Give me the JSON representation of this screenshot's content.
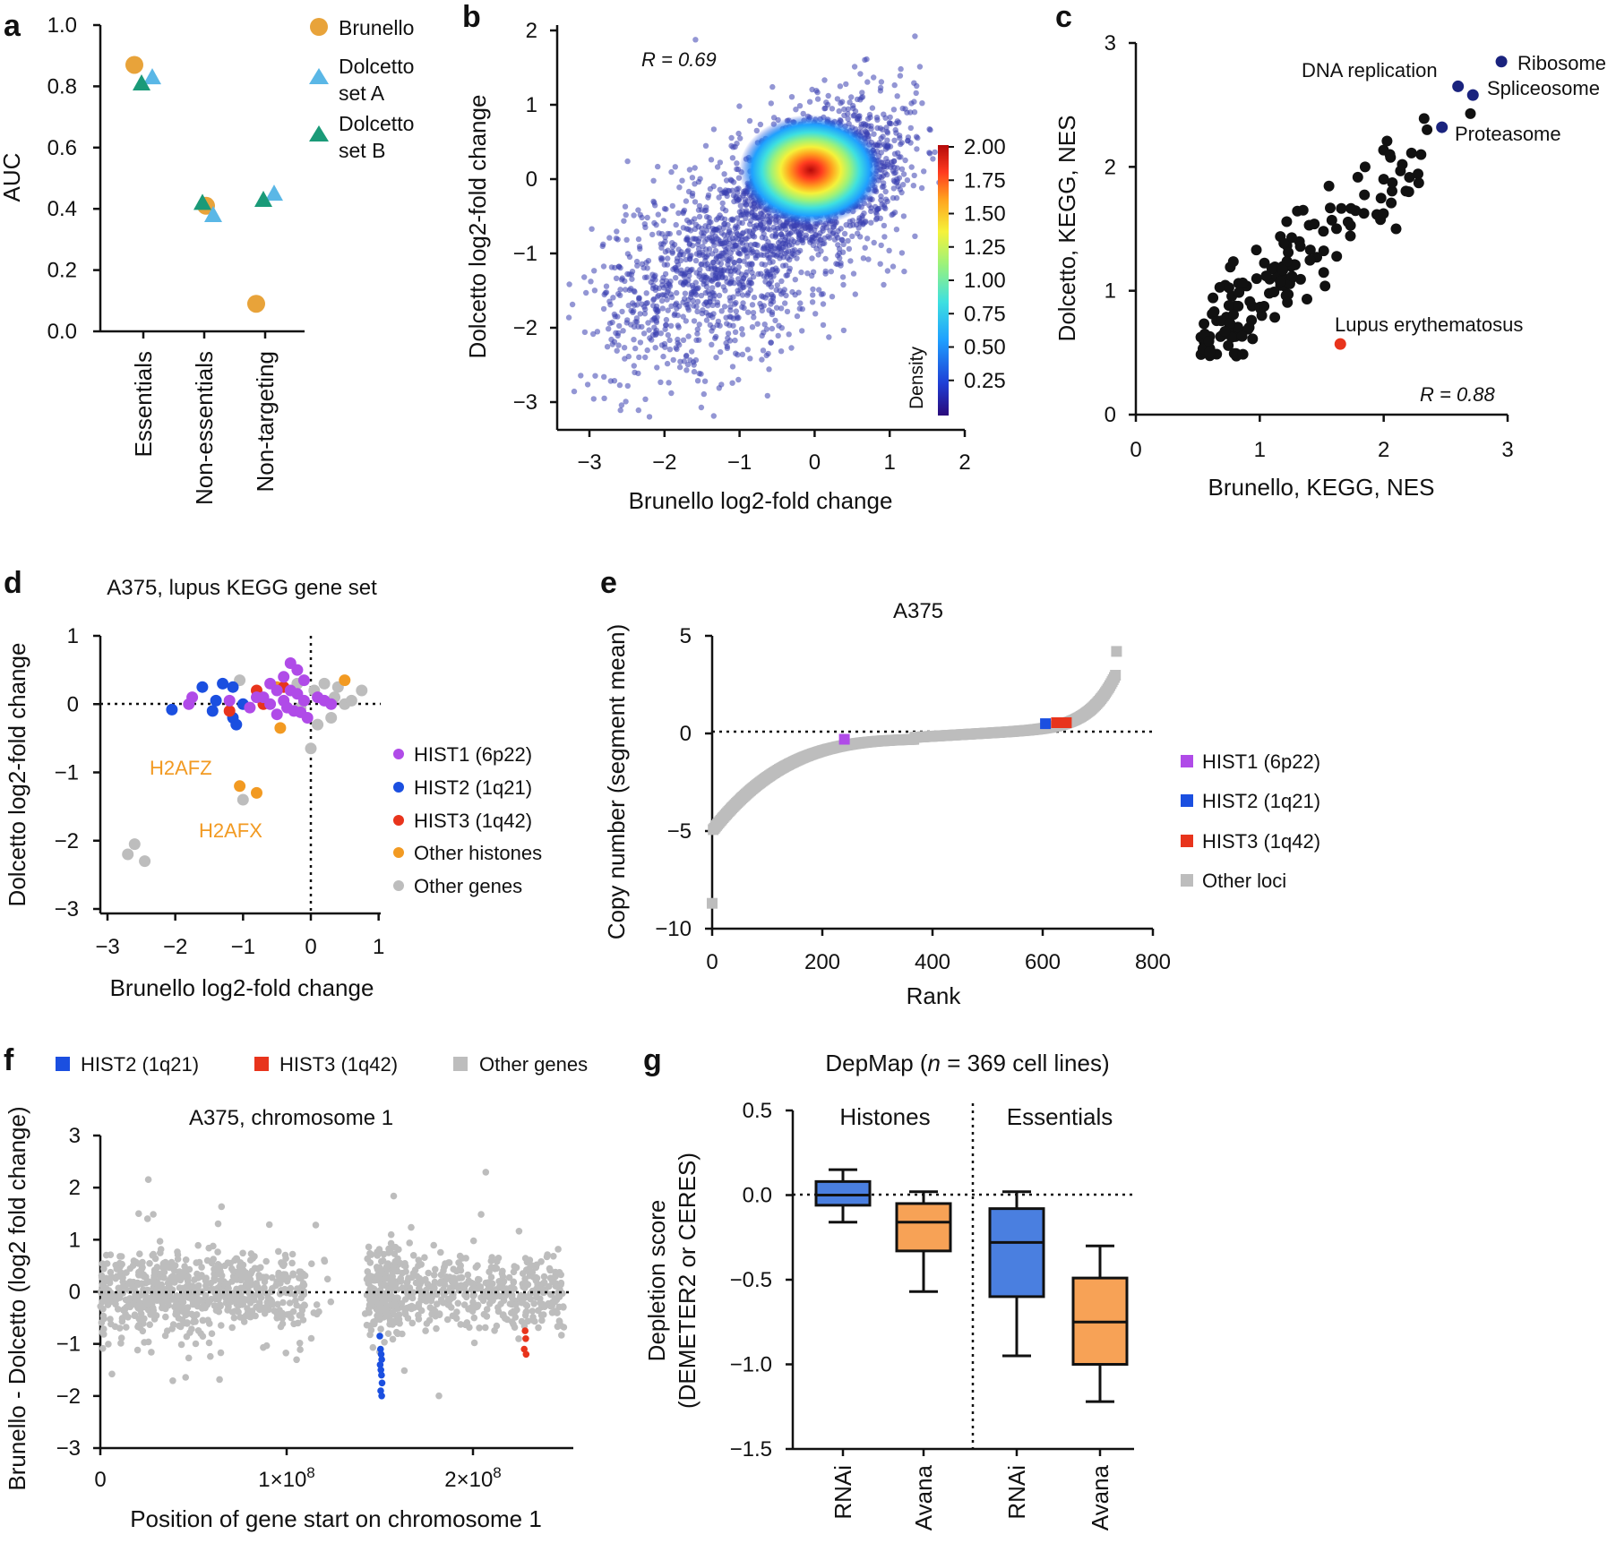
{
  "chart_data": [
    {
      "panel": "a",
      "type": "scatter",
      "ylabel": "AUC",
      "ylim": [
        0,
        1.0
      ],
      "y_ticks": [
        "0.0",
        "0.2",
        "0.4",
        "0.6",
        "0.8",
        "1.0"
      ],
      "categories": [
        "Essentials",
        "Non-essentials",
        "Non-targeting"
      ],
      "legend": [
        "Brunello",
        "Dolcetto set A",
        "Dolcetto set B"
      ],
      "series": [
        {
          "name": "Brunello",
          "color": "#e8a33a",
          "marker": "circle",
          "values": [
            0.87,
            0.41,
            0.09
          ]
        },
        {
          "name": "Dolcetto set A",
          "color": "#5ab7e6",
          "marker": "triangle",
          "values": [
            0.83,
            0.38,
            0.45
          ]
        },
        {
          "name": "Dolcetto set B",
          "color": "#1a9a78",
          "marker": "triangle",
          "values": [
            0.81,
            0.42,
            0.43
          ]
        }
      ]
    },
    {
      "panel": "b",
      "type": "scatter",
      "xlabel": "Brunello log2-fold change",
      "ylabel": "Dolcetto log2-fold change",
      "xlim": [
        -3.4,
        2
      ],
      "ylim": [
        -3.3,
        2.1
      ],
      "x_ticks": [
        "−3",
        "−2",
        "−1",
        "0",
        "1",
        "2"
      ],
      "y_ticks": [
        "−3",
        "−2",
        "−1",
        "0",
        "1",
        "2"
      ],
      "annotation": "R = 0.69",
      "colorbar": {
        "label": "Density",
        "ticks": [
          "0.25",
          "0.50",
          "0.75",
          "1.00",
          "1.25",
          "1.50",
          "1.75",
          "2.00"
        ]
      },
      "density_peak": {
        "x": 0.1,
        "y": 0.1
      }
    },
    {
      "panel": "c",
      "type": "scatter",
      "xlabel": "Brunello, KEGG, NES",
      "ylabel": "Dolcetto, KEGG, NES",
      "xlim": [
        0,
        3
      ],
      "ylim": [
        0,
        3
      ],
      "x_ticks": [
        "0",
        "1",
        "2",
        "3"
      ],
      "y_ticks": [
        "0",
        "1",
        "2",
        "3"
      ],
      "annotation": "R = 0.88",
      "highlighted": [
        {
          "label": "Ribosome",
          "x": 2.95,
          "y": 2.85,
          "color": "#1a237e"
        },
        {
          "label": "DNA replication",
          "x": 2.6,
          "y": 2.65,
          "color": "#1a237e"
        },
        {
          "label": "Spliceosome",
          "x": 2.72,
          "y": 2.58,
          "color": "#1a237e"
        },
        {
          "label": "Proteasome",
          "x": 2.47,
          "y": 2.32,
          "color": "#1a237e"
        },
        {
          "label": "Lupus erythematosus",
          "x": 1.65,
          "y": 0.57,
          "color": "#e8341c"
        }
      ]
    },
    {
      "panel": "d",
      "type": "scatter",
      "title": "A375, lupus KEGG gene set",
      "xlabel": "Brunello log2-fold change",
      "ylabel": "Dolcetto log2-fold change",
      "xlim": [
        -3.1,
        1
      ],
      "ylim": [
        -3.1,
        1
      ],
      "x_ticks": [
        "−3",
        "−2",
        "−1",
        "0",
        "1"
      ],
      "y_ticks": [
        "−3",
        "−2",
        "−1",
        "0",
        "1"
      ],
      "annotations": [
        "H2AFZ",
        "H2AFX"
      ],
      "legend": [
        "HIST1 (6p22)",
        "HIST2 (1q21)",
        "HIST3 (1q42)",
        "Other histones",
        "Other genes"
      ],
      "colors": [
        "#b04be8",
        "#1b4fe0",
        "#e8341c",
        "#f29a22",
        "#bdbdbd"
      ],
      "points": {
        "hist1": [
          [
            -0.3,
            0.6
          ],
          [
            -0.2,
            0.5
          ],
          [
            -0.4,
            0.4
          ],
          [
            -0.1,
            0.35
          ],
          [
            -0.6,
            0.3
          ],
          [
            -0.5,
            0.2
          ],
          [
            -0.3,
            0.2
          ],
          [
            -0.2,
            0.15
          ],
          [
            -0.8,
            0.1
          ],
          [
            -0.7,
            0.1
          ],
          [
            -0.4,
            0.05
          ],
          [
            -0.1,
            0.05
          ],
          [
            0.1,
            0.1
          ],
          [
            -0.6,
            0.0
          ],
          [
            -0.35,
            -0.05
          ],
          [
            -0.25,
            -0.1
          ],
          [
            -0.15,
            -0.12
          ],
          [
            -0.9,
            -0.05
          ],
          [
            -1.2,
            0.05
          ],
          [
            -0.5,
            -0.15
          ],
          [
            -0.05,
            -0.2
          ],
          [
            0.2,
            0.05
          ],
          [
            0.3,
            0.0
          ],
          [
            -1.75,
            0.1
          ],
          [
            -1.8,
            0.0
          ]
        ],
        "hist2": [
          [
            -1.6,
            0.25
          ],
          [
            -1.3,
            0.3
          ],
          [
            -1.15,
            0.25
          ],
          [
            -1.4,
            0.05
          ],
          [
            -1.0,
            0.0
          ],
          [
            -2.05,
            -0.08
          ],
          [
            -1.45,
            -0.1
          ],
          [
            -1.15,
            -0.2
          ],
          [
            -1.1,
            -0.3
          ]
        ],
        "hist3": [
          [
            -0.8,
            0.2
          ],
          [
            -0.7,
            0.0
          ],
          [
            -1.2,
            -0.1
          ],
          [
            -0.4,
            0.25
          ]
        ],
        "other_histones": [
          [
            -1.05,
            -1.2
          ],
          [
            -0.8,
            -1.3
          ],
          [
            -0.45,
            -0.35
          ],
          [
            -0.5,
            0.25
          ],
          [
            0.5,
            0.35
          ]
        ],
        "other_genes": [
          [
            -1.0,
            -1.4
          ],
          [
            -2.7,
            -2.2
          ],
          [
            -2.45,
            -2.3
          ],
          [
            -2.6,
            -2.05
          ],
          [
            0.0,
            -0.65
          ],
          [
            0.2,
            0.3
          ],
          [
            0.4,
            0.25
          ],
          [
            0.75,
            0.2
          ],
          [
            0.1,
            -0.3
          ],
          [
            0.3,
            -0.2
          ],
          [
            -0.2,
            0.3
          ],
          [
            0.5,
            0.0
          ],
          [
            -0.15,
            -0.05
          ],
          [
            0.05,
            0.2
          ],
          [
            0.35,
            0.1
          ],
          [
            -1.05,
            0.35
          ],
          [
            0.6,
            0.05
          ]
        ]
      }
    },
    {
      "panel": "e",
      "type": "scatter",
      "title": "A375",
      "xlabel": "Rank",
      "ylabel": "Copy number (segment mean)",
      "xlim": [
        0,
        800
      ],
      "ylim": [
        -10,
        5
      ],
      "x_ticks": [
        "0",
        "200",
        "400",
        "600",
        "800"
      ],
      "y_ticks": [
        "−10",
        "−5",
        "0",
        "5"
      ],
      "legend": [
        "HIST1 (6p22)",
        "HIST2 (1q21)",
        "HIST3 (1q42)",
        "Other loci"
      ],
      "colors": [
        "#b04be8",
        "#1b4fe0",
        "#e8341c",
        "#bdbdbd"
      ],
      "highlighted": [
        {
          "name": "HIST1 (6p22)",
          "x": 240,
          "y": -0.3
        },
        {
          "name": "HIST2 (1q21)",
          "x": 605,
          "y": 0.5
        },
        {
          "name": "HIST3 (1q42)",
          "x": 625,
          "y": 0.55
        }
      ]
    },
    {
      "panel": "f",
      "type": "scatter",
      "title": "A375, chromosome 1",
      "xlabel": "Position of gene start on chromosome 1",
      "ylabel": "Brunello - Dolcetto (log2 fold change)",
      "xlim": [
        0,
        250000000
      ],
      "ylim": [
        -3,
        3
      ],
      "x_ticks": [
        "0",
        "1×10",
        "2×10"
      ],
      "x_tick_exp": "8",
      "y_ticks": [
        "−3",
        "−2",
        "−1",
        "0",
        "1",
        "2",
        "3"
      ],
      "legend": [
        "HIST2 (1q21)",
        "HIST3 (1q42)",
        "Other genes"
      ],
      "colors": [
        "#1b4fe0",
        "#e8341c",
        "#bdbdbd"
      ],
      "hist2_points": [
        [
          150000000,
          -0.85
        ],
        [
          150400000,
          -1.1
        ],
        [
          150700000,
          -1.2
        ],
        [
          151000000,
          -1.3
        ],
        [
          150200000,
          -1.4
        ],
        [
          150600000,
          -1.5
        ],
        [
          150900000,
          -1.6
        ],
        [
          151200000,
          -1.75
        ],
        [
          150500000,
          -1.9
        ],
        [
          151000000,
          -2.0
        ]
      ],
      "hist3_points": [
        [
          228000000,
          -0.75
        ],
        [
          228300000,
          -0.9
        ],
        [
          227500000,
          -1.1
        ],
        [
          228500000,
          -1.2
        ]
      ]
    },
    {
      "panel": "g",
      "type": "box",
      "title_prefix": "DepMap (",
      "title_italic": "n",
      "title_suffix": " = 369 cell lines)",
      "ylabel_line1": "Depletion score",
      "ylabel_line2": "(DEMETER2 or CERES)",
      "ylim": [
        -1.5,
        0.5
      ],
      "y_ticks": [
        "−1.5",
        "−1.0",
        "−0.5",
        "0.0",
        "0.5"
      ],
      "groups": [
        "Histones",
        "Essentials"
      ],
      "categories": [
        "RNAi",
        "Avana",
        "RNAi",
        "Avana"
      ],
      "boxes": [
        {
          "name": "RNAi",
          "group": "Histones",
          "color": "#4a7fe0",
          "min": -0.16,
          "q1": -0.06,
          "median": 0.0,
          "q3": 0.08,
          "max": 0.15
        },
        {
          "name": "Avana",
          "group": "Histones",
          "color": "#f7a256",
          "min": -0.57,
          "q1": -0.33,
          "median": -0.16,
          "q3": -0.05,
          "max": 0.02
        },
        {
          "name": "RNAi",
          "group": "Essentials",
          "color": "#4a7fe0",
          "min": -0.95,
          "q1": -0.6,
          "median": -0.28,
          "q3": -0.08,
          "max": 0.02
        },
        {
          "name": "Avana",
          "group": "Essentials",
          "color": "#f7a256",
          "min": -1.22,
          "q1": -1.0,
          "median": -0.75,
          "q3": -0.49,
          "max": -0.3
        }
      ]
    }
  ],
  "panel_letters": [
    "a",
    "b",
    "c",
    "d",
    "e",
    "f",
    "g"
  ],
  "colorbar_colors": [
    "#2a0a7a",
    "#1f3fd6",
    "#1fa0ff",
    "#3ee0e0",
    "#9cf27a",
    "#f5f23a",
    "#ffa21f",
    "#ff3a1f",
    "#b50a0a"
  ]
}
